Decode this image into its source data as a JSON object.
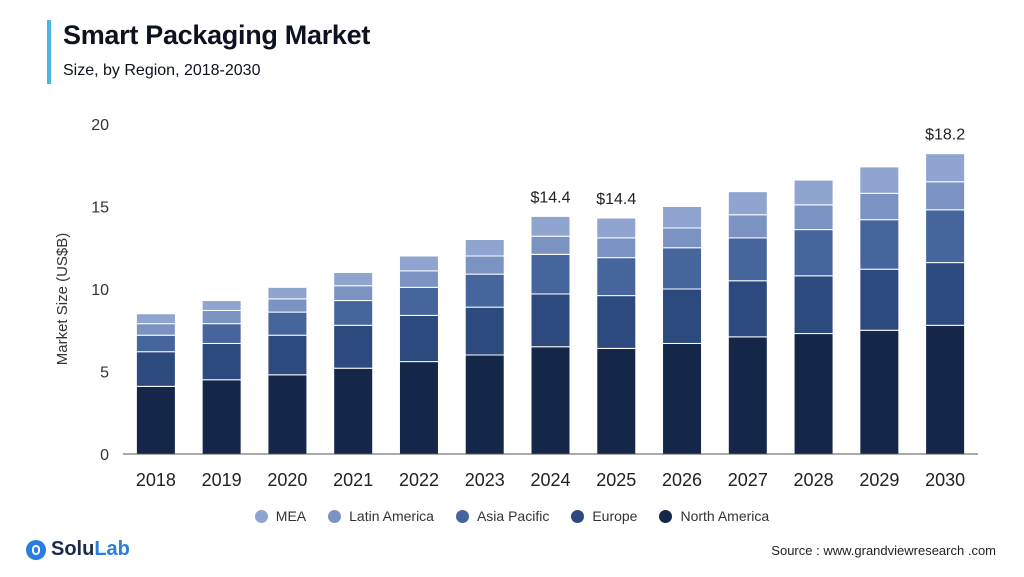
{
  "header": {
    "title": "Smart Packaging Market",
    "subtitle": "Size,  by Region, 2018-2030"
  },
  "footer": {
    "logo_so": "Solu",
    "logo_lab": "Lab",
    "source": "Source :  www.grandviewresearch .com"
  },
  "colors": {
    "accent": "#4db6e6",
    "north_america": "#142748",
    "europe": "#2c4a7e",
    "asia_pacific": "#46659c",
    "latin_america": "#7b93c3",
    "mea": "#8fa4cf"
  },
  "chart_data": {
    "type": "bar",
    "stacked": true,
    "title": "",
    "xlabel": "",
    "ylabel": "Market Size (US$B)",
    "ylim": [
      0,
      20
    ],
    "yticks": [
      0,
      5,
      10,
      15,
      20
    ],
    "grid": false,
    "legend_position": "bottom",
    "categories": [
      "2018",
      "2019",
      "2020",
      "2021",
      "2022",
      "2023",
      "2024",
      "2025",
      "2026",
      "2027",
      "2028",
      "2029",
      "2030"
    ],
    "series": [
      {
        "name": "North America",
        "color": "#142748",
        "values": [
          4.1,
          4.5,
          4.8,
          5.2,
          5.6,
          6.0,
          6.5,
          6.4,
          6.7,
          7.1,
          7.3,
          7.5,
          7.8
        ]
      },
      {
        "name": "Europe",
        "color": "#2c4a7e",
        "values": [
          2.1,
          2.2,
          2.4,
          2.6,
          2.8,
          2.9,
          3.2,
          3.2,
          3.3,
          3.4,
          3.5,
          3.7,
          3.8
        ]
      },
      {
        "name": "Asia Pacific",
        "color": "#46659c",
        "values": [
          1.0,
          1.2,
          1.4,
          1.5,
          1.7,
          2.0,
          2.4,
          2.3,
          2.5,
          2.6,
          2.8,
          3.0,
          3.2
        ]
      },
      {
        "name": "Latin America",
        "color": "#7b93c3",
        "values": [
          0.7,
          0.8,
          0.8,
          0.9,
          1.0,
          1.1,
          1.1,
          1.2,
          1.2,
          1.4,
          1.5,
          1.6,
          1.7
        ]
      },
      {
        "name": "MEA",
        "color": "#8fa4cf",
        "values": [
          0.6,
          0.6,
          0.7,
          0.8,
          0.9,
          1.0,
          1.2,
          1.2,
          1.3,
          1.4,
          1.5,
          1.6,
          1.7
        ]
      }
    ],
    "legend_order": [
      "MEA",
      "Latin America",
      "Asia Pacific",
      "Europe",
      "North America"
    ],
    "annotations": [
      {
        "category": "2024",
        "text": "$14.4"
      },
      {
        "category": "2025",
        "text": "$14.4"
      },
      {
        "category": "2030",
        "text": "$18.2"
      }
    ]
  }
}
